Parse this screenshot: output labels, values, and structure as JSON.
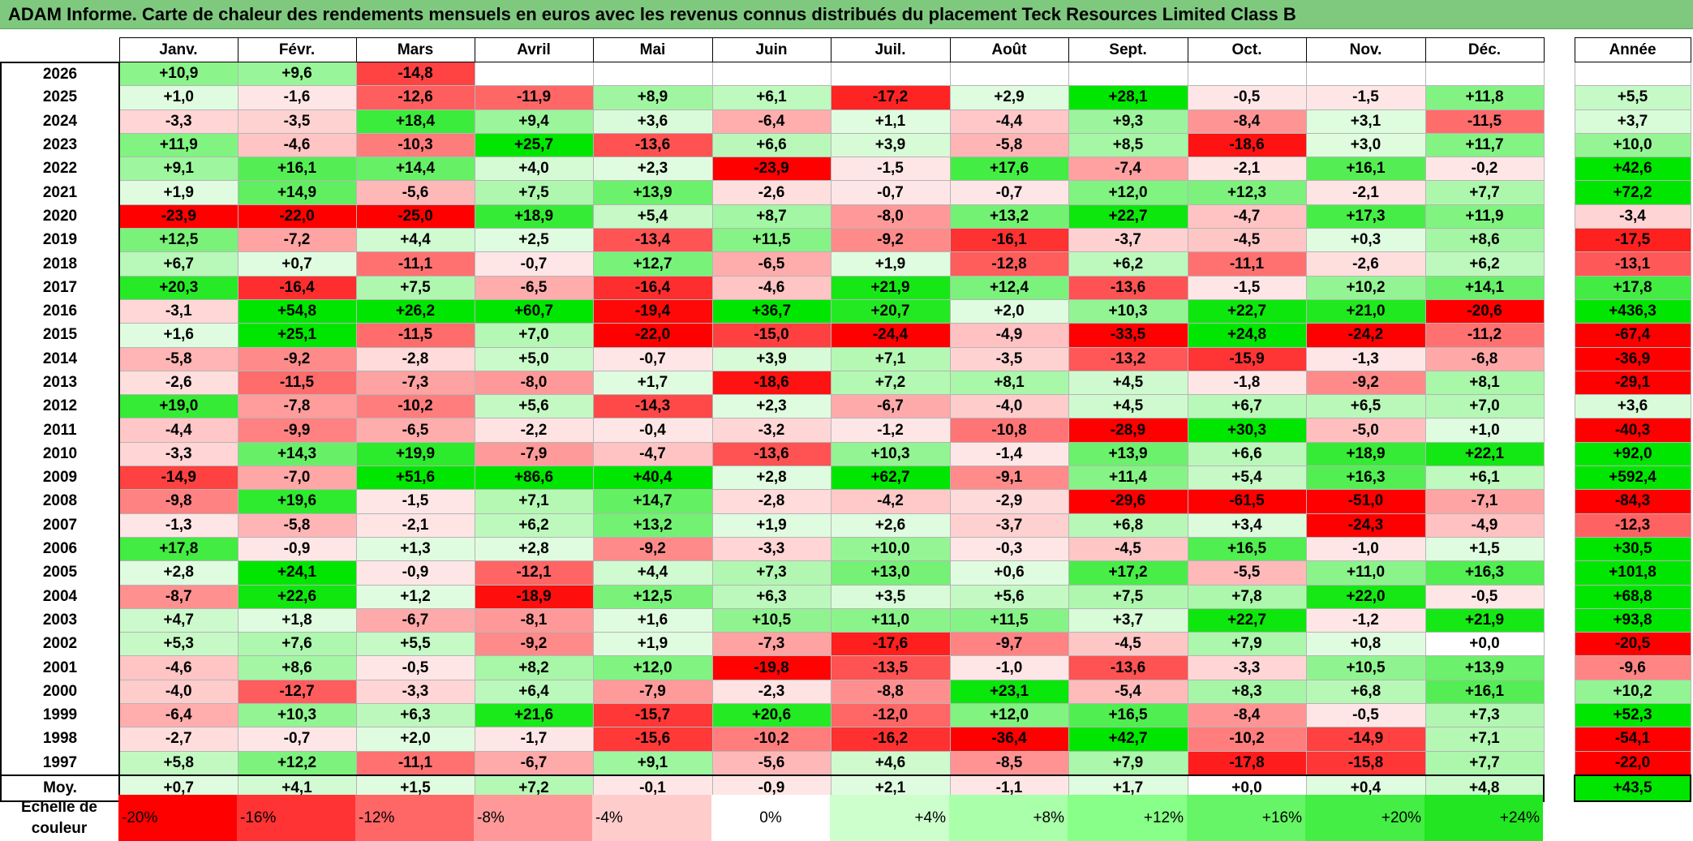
{
  "title": "ADAM Informe. Carte de chaleur des rendements mensuels en euros avec les revenus connus distribués du placement Teck Resources Limited Class B",
  "headers": {
    "months": [
      "Janv.",
      "Févr.",
      "Mars",
      "Avril",
      "Mai",
      "Juin",
      "Juil.",
      "Août",
      "Sept.",
      "Oct.",
      "Nov.",
      "Déc."
    ],
    "year_col": "Année"
  },
  "colors": {
    "positive_max": "#00e600",
    "negative_max": "#ff0000",
    "neutral": "#ffffff",
    "title_bg": "#7fc97f"
  },
  "chart_data": {
    "type": "heatmap",
    "title": "ADAM Informe. Carte de chaleur des rendements mensuels en euros avec les revenus connus distribués du placement Teck Resources Limited Class B",
    "columns": [
      "Janv.",
      "Févr.",
      "Mars",
      "Avril",
      "Mai",
      "Juin",
      "Juil.",
      "Août",
      "Sept.",
      "Oct.",
      "Nov.",
      "Déc."
    ],
    "rows": [
      {
        "year": "2026",
        "months": [
          "+10,9",
          "+9,6",
          "-14,8",
          "",
          "",
          "",
          "",
          "",
          "",
          "",
          "",
          ""
        ],
        "annual": ""
      },
      {
        "year": "2025",
        "months": [
          "+1,0",
          "-1,6",
          "-12,6",
          "-11,9",
          "+8,9",
          "+6,1",
          "-17,2",
          "+2,9",
          "+28,1",
          "-0,5",
          "-1,5",
          "+11,8"
        ],
        "annual": "+5,5"
      },
      {
        "year": "2024",
        "months": [
          "-3,3",
          "-3,5",
          "+18,4",
          "+9,4",
          "+3,6",
          "-6,4",
          "+1,1",
          "-4,4",
          "+9,3",
          "-8,4",
          "+3,1",
          "-11,5"
        ],
        "annual": "+3,7"
      },
      {
        "year": "2023",
        "months": [
          "+11,9",
          "-4,6",
          "-10,3",
          "+25,7",
          "-13,6",
          "+6,6",
          "+3,9",
          "-5,8",
          "+8,5",
          "-18,6",
          "+3,0",
          "+11,7"
        ],
        "annual": "+10,0"
      },
      {
        "year": "2022",
        "months": [
          "+9,1",
          "+16,1",
          "+14,4",
          "+4,0",
          "+2,3",
          "-23,9",
          "-1,5",
          "+17,6",
          "-7,4",
          "-2,1",
          "+16,1",
          "-0,2"
        ],
        "annual": "+42,6"
      },
      {
        "year": "2021",
        "months": [
          "+1,9",
          "+14,9",
          "-5,6",
          "+7,5",
          "+13,9",
          "-2,6",
          "-0,7",
          "-0,7",
          "+12,0",
          "+12,3",
          "-2,1",
          "+7,7"
        ],
        "annual": "+72,2"
      },
      {
        "year": "2020",
        "months": [
          "-23,9",
          "-22,0",
          "-25,0",
          "+18,9",
          "+5,4",
          "+8,7",
          "-8,0",
          "+13,2",
          "+22,7",
          "-4,7",
          "+17,3",
          "+11,9"
        ],
        "annual": "-3,4"
      },
      {
        "year": "2019",
        "months": [
          "+12,5",
          "-7,2",
          "+4,4",
          "+2,5",
          "-13,4",
          "+11,5",
          "-9,2",
          "-16,1",
          "-3,7",
          "-4,5",
          "+0,3",
          "+8,6"
        ],
        "annual": "-17,5"
      },
      {
        "year": "2018",
        "months": [
          "+6,7",
          "+0,7",
          "-11,1",
          "-0,7",
          "+12,7",
          "-6,5",
          "+1,9",
          "-12,8",
          "+6,2",
          "-11,1",
          "-2,6",
          "+6,2"
        ],
        "annual": "-13,1"
      },
      {
        "year": "2017",
        "months": [
          "+20,3",
          "-16,4",
          "+7,5",
          "-6,5",
          "-16,4",
          "-4,6",
          "+21,9",
          "+12,4",
          "-13,6",
          "-1,5",
          "+10,2",
          "+14,1"
        ],
        "annual": "+17,8"
      },
      {
        "year": "2016",
        "months": [
          "-3,1",
          "+54,8",
          "+26,2",
          "+60,7",
          "-19,4",
          "+36,7",
          "+20,7",
          "+2,0",
          "+10,3",
          "+22,7",
          "+21,0",
          "-20,6"
        ],
        "annual": "+436,3"
      },
      {
        "year": "2015",
        "months": [
          "+1,6",
          "+25,1",
          "-11,5",
          "+7,0",
          "-22,0",
          "-15,0",
          "-24,4",
          "-4,9",
          "-33,5",
          "+24,8",
          "-24,2",
          "-11,2"
        ],
        "annual": "-67,4"
      },
      {
        "year": "2014",
        "months": [
          "-5,8",
          "-9,2",
          "-2,8",
          "+5,0",
          "-0,7",
          "+3,9",
          "+7,1",
          "-3,5",
          "-13,2",
          "-15,9",
          "-1,3",
          "-6,8"
        ],
        "annual": "-36,9"
      },
      {
        "year": "2013",
        "months": [
          "-2,6",
          "-11,5",
          "-7,3",
          "-8,0",
          "+1,7",
          "-18,6",
          "+7,2",
          "+8,1",
          "+4,5",
          "-1,8",
          "-9,2",
          "+8,1"
        ],
        "annual": "-29,1"
      },
      {
        "year": "2012",
        "months": [
          "+19,0",
          "-7,8",
          "-10,2",
          "+5,6",
          "-14,3",
          "+2,3",
          "-6,7",
          "-4,0",
          "+4,5",
          "+6,7",
          "+6,5",
          "+7,0"
        ],
        "annual": "+3,6"
      },
      {
        "year": "2011",
        "months": [
          "-4,4",
          "-9,9",
          "-6,5",
          "-2,2",
          "-0,4",
          "-3,2",
          "-1,2",
          "-10,8",
          "-28,9",
          "+30,3",
          "-5,0",
          "+1,0"
        ],
        "annual": "-40,3"
      },
      {
        "year": "2010",
        "months": [
          "-3,3",
          "+14,3",
          "+19,9",
          "-7,9",
          "-4,7",
          "-13,6",
          "+10,3",
          "-1,4",
          "+13,9",
          "+6,6",
          "+18,9",
          "+22,1"
        ],
        "annual": "+92,0"
      },
      {
        "year": "2009",
        "months": [
          "-14,9",
          "-7,0",
          "+51,6",
          "+86,6",
          "+40,4",
          "+2,8",
          "+62,7",
          "-9,1",
          "+11,4",
          "+5,4",
          "+16,3",
          "+6,1"
        ],
        "annual": "+592,4"
      },
      {
        "year": "2008",
        "months": [
          "-9,8",
          "+19,6",
          "-1,5",
          "+7,1",
          "+14,7",
          "-2,8",
          "-4,2",
          "-2,9",
          "-29,6",
          "-61,5",
          "-51,0",
          "-7,1"
        ],
        "annual": "-84,3"
      },
      {
        "year": "2007",
        "months": [
          "-1,3",
          "-5,8",
          "-2,1",
          "+6,2",
          "+13,2",
          "+1,9",
          "+2,6",
          "-3,7",
          "+6,8",
          "+3,4",
          "-24,3",
          "-4,9"
        ],
        "annual": "-12,3"
      },
      {
        "year": "2006",
        "months": [
          "+17,8",
          "-0,9",
          "+1,3",
          "+2,8",
          "-9,2",
          "-3,3",
          "+10,0",
          "-0,3",
          "-4,5",
          "+16,5",
          "-1,0",
          "+1,5"
        ],
        "annual": "+30,5"
      },
      {
        "year": "2005",
        "months": [
          "+2,8",
          "+24,1",
          "-0,9",
          "-12,1",
          "+4,4",
          "+7,3",
          "+13,0",
          "+0,6",
          "+17,2",
          "-5,5",
          "+11,0",
          "+16,3"
        ],
        "annual": "+101,8"
      },
      {
        "year": "2004",
        "months": [
          "-8,7",
          "+22,6",
          "+1,2",
          "-18,9",
          "+12,5",
          "+6,3",
          "+3,5",
          "+5,6",
          "+7,5",
          "+7,8",
          "+22,0",
          "-0,5"
        ],
        "annual": "+68,8"
      },
      {
        "year": "2003",
        "months": [
          "+4,7",
          "+1,8",
          "-6,7",
          "-8,1",
          "+1,6",
          "+10,5",
          "+11,0",
          "+11,5",
          "+3,7",
          "+22,7",
          "-1,2",
          "+21,9"
        ],
        "annual": "+93,8"
      },
      {
        "year": "2002",
        "months": [
          "+5,3",
          "+7,6",
          "+5,5",
          "-9,2",
          "+1,9",
          "-7,3",
          "-17,6",
          "-9,7",
          "-4,5",
          "+7,9",
          "+0,8",
          "+0,0"
        ],
        "annual": "-20,5"
      },
      {
        "year": "2001",
        "months": [
          "-4,6",
          "+8,6",
          "-0,5",
          "+8,2",
          "+12,0",
          "-19,8",
          "-13,5",
          "-1,0",
          "-13,6",
          "-3,3",
          "+10,5",
          "+13,9"
        ],
        "annual": "-9,6"
      },
      {
        "year": "2000",
        "months": [
          "-4,0",
          "-12,7",
          "-3,3",
          "+6,4",
          "-7,9",
          "-2,3",
          "-8,8",
          "+23,1",
          "-5,4",
          "+8,3",
          "+6,8",
          "+16,1"
        ],
        "annual": "+10,2"
      },
      {
        "year": "1999",
        "months": [
          "-6,4",
          "+10,3",
          "+6,3",
          "+21,6",
          "-15,7",
          "+20,6",
          "-12,0",
          "+12,0",
          "+16,5",
          "-8,4",
          "-0,5",
          "+7,3"
        ],
        "annual": "+52,3"
      },
      {
        "year": "1998",
        "months": [
          "-2,7",
          "-0,7",
          "+2,0",
          "-1,7",
          "-15,6",
          "-10,2",
          "-16,2",
          "-36,4",
          "+42,7",
          "-10,2",
          "-14,9",
          "+7,1"
        ],
        "annual": "-54,1"
      },
      {
        "year": "1997",
        "months": [
          "+5,8",
          "+12,2",
          "-11,1",
          "-6,7",
          "+9,1",
          "-5,6",
          "+4,6",
          "-8,5",
          "+7,9",
          "-17,8",
          "-15,8",
          "+7,7"
        ],
        "annual": "-22,0"
      }
    ],
    "average": {
      "label": "Moy.",
      "months": [
        "+0,7",
        "+4,1",
        "+1,5",
        "+7,2",
        "-0,1",
        "-0,9",
        "+2,1",
        "-1,1",
        "+1,7",
        "+0,0",
        "+0,4",
        "+4,8"
      ],
      "annual": "+43,5"
    },
    "color_scale": {
      "label_line1": "Echelle de",
      "label_line2": "couleur",
      "steps": [
        {
          "label": "-20%",
          "value": -20,
          "color": "#ff0000"
        },
        {
          "label": "-16%",
          "value": -16,
          "color": "#ff3333"
        },
        {
          "label": "-12%",
          "value": -12,
          "color": "#ff6666"
        },
        {
          "label": "-8%",
          "value": -8,
          "color": "#ff9999"
        },
        {
          "label": "-4%",
          "value": -4,
          "color": "#ffcccc"
        },
        {
          "label": "0%",
          "value": 0,
          "color": "#ffffff"
        },
        {
          "label": "+4%",
          "value": 4,
          "color": "#ccffcc"
        },
        {
          "label": "+8%",
          "value": 8,
          "color": "#aaffaa"
        },
        {
          "label": "+12%",
          "value": 12,
          "color": "#88ff88"
        },
        {
          "label": "+16%",
          "value": 16,
          "color": "#66f566"
        },
        {
          "label": "+20%",
          "value": 20,
          "color": "#44ee44"
        },
        {
          "label": "+24%",
          "value": 24,
          "color": "#22e622"
        }
      ]
    }
  }
}
